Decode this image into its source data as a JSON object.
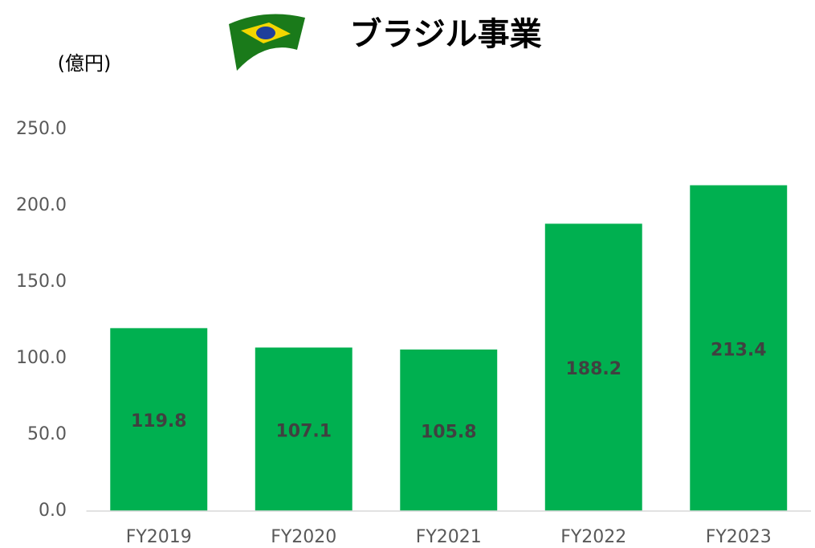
{
  "chart_data": {
    "type": "bar",
    "title": "ブラジル事業",
    "y_axis_label": "(億円)",
    "categories": [
      "FY2019",
      "FY2020",
      "FY2021",
      "FY2022",
      "FY2023"
    ],
    "values": [
      119.8,
      107.1,
      105.8,
      188.2,
      213.4
    ],
    "color": "#00b050",
    "ylim": [
      0,
      250
    ],
    "yticks": [
      {
        "value": 0,
        "label": "0.0"
      },
      {
        "value": 50,
        "label": "50.0"
      },
      {
        "value": 100,
        "label": "100.0"
      },
      {
        "value": 150,
        "label": "150.0"
      },
      {
        "value": 200,
        "label": "200.0"
      },
      {
        "value": 250,
        "label": "250.0"
      }
    ],
    "grid": false
  }
}
